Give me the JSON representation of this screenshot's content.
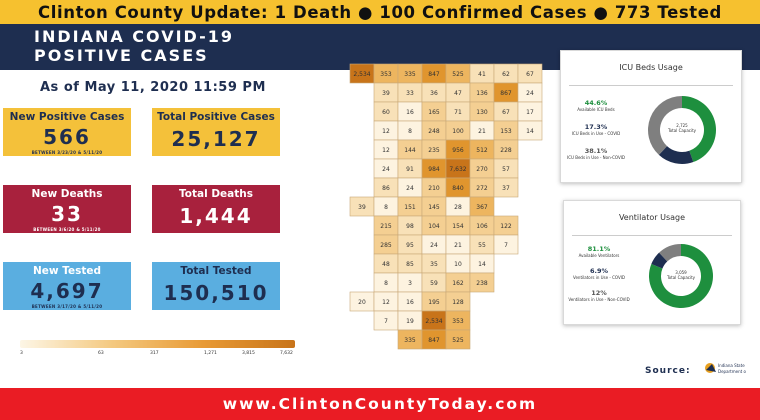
{
  "header": {
    "banner": "Clinton County Update: 1 Death ● 100 Confirmed Cases ● 773 Tested"
  },
  "title": {
    "line1": "INDIANA COVID-19",
    "line2": "POSITIVE CASES"
  },
  "as_of": "As of May 11, 2020 11:59 PM",
  "cards": {
    "new_positive": {
      "label": "New Positive Cases",
      "value": "566",
      "sub": "BETWEEN 3/23/20 & 5/11/20"
    },
    "total_positive": {
      "label": "Total Positive Cases",
      "value": "25,127"
    },
    "new_deaths": {
      "label": "New Deaths",
      "value": "33",
      "sub": "BETWEEN 3/6/20 & 5/11/20"
    },
    "total_deaths": {
      "label": "Total Deaths",
      "value": "1,444"
    },
    "new_tested": {
      "label": "New Tested",
      "value": "4,697",
      "sub": "BETWEEN 3/17/20 & 5/11/20"
    },
    "total_tested": {
      "label": "Total Tested",
      "value": "150,510"
    }
  },
  "map_legend": {
    "ticks": [
      "3",
      "63",
      "317",
      "1,271",
      "3,815",
      "7,632"
    ]
  },
  "map_counts": [
    "2,534",
    "353",
    "335",
    "847",
    "525",
    "41",
    "62",
    "67",
    "39",
    "33",
    "36",
    "47",
    "136",
    "867",
    "24",
    "60",
    "16",
    "165",
    "71",
    "130",
    "67",
    "17",
    "12",
    "8",
    "248",
    "100",
    "21",
    "153",
    "14",
    "12",
    "144",
    "235",
    "956",
    "512",
    "228",
    "24",
    "91",
    "984",
    "7,632",
    "270",
    "57",
    "86",
    "24",
    "210",
    "840",
    "272",
    "37",
    "39",
    "8",
    "151",
    "145",
    "28",
    "367",
    "215",
    "98",
    "104",
    "154",
    "106",
    "122",
    "285",
    "95",
    "24",
    "21",
    "55",
    "7",
    "48",
    "85",
    "35",
    "10",
    "14",
    "8",
    "3",
    "59",
    "162",
    "238",
    "20",
    "12",
    "16",
    "195",
    "128",
    "7",
    "19"
  ],
  "icu": {
    "title": "ICU Beds Usage",
    "center": "2,725",
    "center_label": "Total Capacity",
    "stats": [
      {
        "pct": "44.6%",
        "desc": "Available ICU Beds",
        "color": "#1e8f3e"
      },
      {
        "pct": "17.3%",
        "desc": "ICU Beds in Use - COVID",
        "color": "#1e2e50"
      },
      {
        "pct": "38.1%",
        "desc": "ICU Beds in Use - Non-COVID",
        "color": "#7f7f7f"
      }
    ],
    "values": [
      44.6,
      17.3,
      38.1
    ]
  },
  "vent": {
    "title": "Ventilator Usage",
    "center": "3,059",
    "center_label": "Total Capacity",
    "stats": [
      {
        "pct": "81.1%",
        "desc": "Available Ventilators",
        "color": "#1e8f3e"
      },
      {
        "pct": "6.9%",
        "desc": "Ventilators in Use - COVID",
        "color": "#1e2e50"
      },
      {
        "pct": "12%",
        "desc": "Ventilators in Use - Non-COVID",
        "color": "#7f7f7f"
      }
    ],
    "values": [
      81.1,
      6.9,
      12
    ]
  },
  "source": {
    "label": "Source:",
    "logo_text": "Indiana State Department of Health"
  },
  "footer": {
    "url": "www.ClintonCountyToday.com"
  }
}
